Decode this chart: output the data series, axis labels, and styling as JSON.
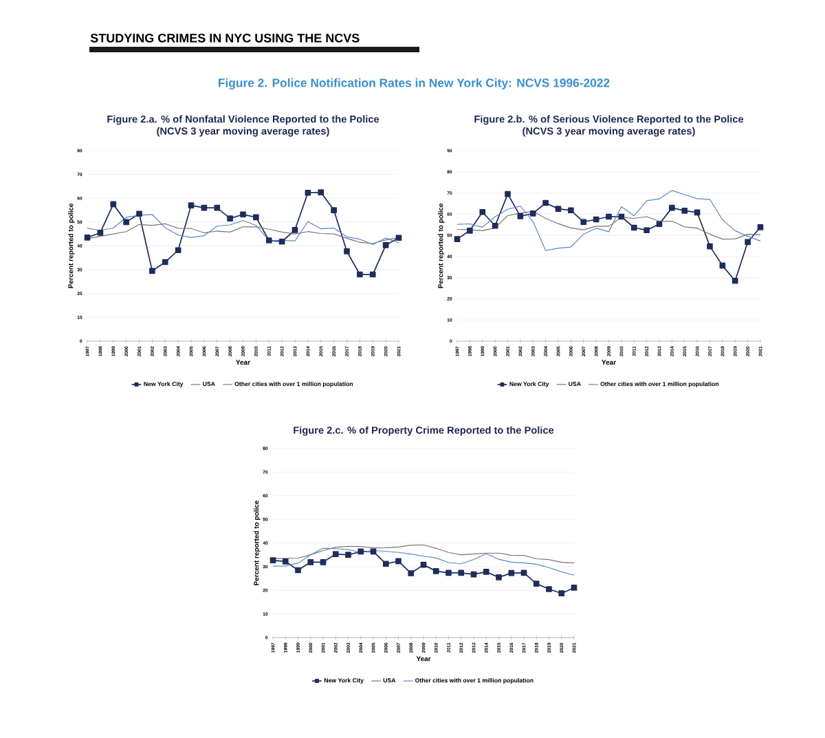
{
  "chart_data": [
    {
      "type": "other",
      "title": "STUDYING CRIMES IN NYC USING THE NCVS",
      "subtitle": "Figure 2. Police Notification Rates in New York City: NCVS 1996-2022"
    },
    {
      "type": "line",
      "title": "Figure 2.a. % of Nonfatal Violence Reported to the Police",
      "subtitle": "(NCVS 3 year moving average rates)",
      "xlabel": "Year",
      "ylabel": "Percent reported to police",
      "categories": [
        "1997",
        "1998",
        "1999",
        "2000",
        "2001",
        "2002",
        "2003",
        "2004",
        "2005",
        "2006",
        "2007",
        "2008",
        "2009",
        "2010",
        "2011",
        "2012",
        "2013",
        "2014",
        "2015",
        "2016",
        "2017",
        "2018",
        "2019",
        "2020",
        "2021"
      ],
      "ylim": [
        0,
        80
      ],
      "yticks": [
        0,
        10,
        20,
        30,
        40,
        50,
        60,
        70,
        80
      ],
      "grid": "y",
      "legend": "bottom",
      "series": [
        {
          "name": "New York City",
          "color": "#1f2d5c",
          "marker": "square",
          "values": [
            43.5,
            45.5,
            57.5,
            50,
            53.5,
            29.5,
            33.2,
            38.2,
            57,
            56,
            56,
            51.5,
            53.2,
            52,
            42.3,
            41.8,
            46.7,
            62.3,
            62.5,
            55,
            37.7,
            28,
            28,
            40.3,
            43.4
          ]
        },
        {
          "name": "USA",
          "color": "#7a7372",
          "marker": "none",
          "values": [
            43,
            44,
            45,
            46,
            49,
            48.6,
            49.3,
            47.4,
            47.3,
            45.5,
            46.2,
            45.8,
            48,
            48,
            47,
            45.8,
            45,
            46,
            45.2,
            45,
            43.2,
            41.5,
            41,
            42.5,
            43.5
          ]
        },
        {
          "name": "Other cities with over 1 million population",
          "color": "#5b87c0",
          "marker": "none",
          "values": [
            47.4,
            46.5,
            47.5,
            52,
            52.8,
            53.2,
            47.6,
            44.6,
            43.5,
            44.3,
            48.3,
            48.8,
            50.7,
            48.6,
            42.3,
            42.3,
            42.1,
            50.2,
            47.2,
            47.5,
            43.8,
            42.8,
            40.6,
            43.3,
            41.3
          ]
        }
      ]
    },
    {
      "type": "line",
      "title": "Figure 2.b. % of Serious Violence Reported to the Police",
      "subtitle": "(NCVS 3 year moving average rates)",
      "xlabel": "Year",
      "ylabel": "Percent reported to police",
      "categories": [
        "1997",
        "1998",
        "1999",
        "2000",
        "2001",
        "2002",
        "2003",
        "2004",
        "2005",
        "2006",
        "2007",
        "2008",
        "2009",
        "2010",
        "2011",
        "2012",
        "2013",
        "2014",
        "2015",
        "2016",
        "2017",
        "2018",
        "2019",
        "2020",
        "2021"
      ],
      "ylim": [
        0,
        90
      ],
      "yticks": [
        0,
        10,
        20,
        30,
        40,
        50,
        60,
        70,
        80,
        90
      ],
      "grid": "y",
      "legend": "bottom",
      "series": [
        {
          "name": "New York City",
          "color": "#1f2d5c",
          "marker": "square",
          "values": [
            48.2,
            52.2,
            61,
            54.5,
            69.5,
            59,
            60.3,
            65.3,
            62.5,
            61.8,
            56.3,
            57.5,
            58.8,
            58.8,
            53.6,
            52.4,
            55.3,
            63,
            61.6,
            60.8,
            44.8,
            35.7,
            28.5,
            46.8,
            53.8
          ]
        },
        {
          "name": "USA",
          "color": "#7a7372",
          "marker": "none",
          "values": [
            52.8,
            52.6,
            52.2,
            53.5,
            59.3,
            60.5,
            61.3,
            58,
            55.5,
            53.5,
            52.6,
            54.3,
            54.3,
            58.5,
            58,
            58.8,
            56.6,
            56.7,
            54,
            53.4,
            50.5,
            48.2,
            48.3,
            50.5,
            50.3
          ]
        },
        {
          "name": "Other cities with over 1 million population",
          "color": "#5b87c0",
          "marker": "none",
          "values": [
            55.2,
            55.4,
            53.8,
            58.8,
            62.3,
            63.8,
            56.5,
            42.8,
            43.9,
            44.5,
            50.5,
            53.3,
            51.7,
            63.5,
            59.2,
            66.3,
            67.2,
            71.2,
            69.2,
            67.3,
            67,
            57.3,
            52.2,
            49.5,
            47.3
          ]
        }
      ]
    },
    {
      "type": "line",
      "title": "Figure 2.c. % of Property Crime Reported to the Police",
      "xlabel": "Year",
      "ylabel": "Percent reported to police",
      "categories": [
        "1997",
        "1998",
        "1999",
        "2000",
        "2001",
        "2002",
        "2003",
        "2004",
        "2005",
        "2006",
        "2007",
        "2008",
        "2009",
        "2010",
        "2011",
        "2012",
        "2013",
        "2014",
        "2015",
        "2016",
        "2017",
        "2018",
        "2019",
        "2020",
        "2021"
      ],
      "ylim": [
        0,
        80
      ],
      "yticks": [
        0,
        10,
        20,
        30,
        40,
        50,
        60,
        70,
        80
      ],
      "grid": "y",
      "legend": "bottom",
      "series": [
        {
          "name": "New York City",
          "color": "#1f2d5c",
          "marker": "square",
          "values": [
            32.7,
            32.2,
            28.5,
            31.9,
            31.9,
            35.3,
            35,
            36.4,
            36.4,
            31.2,
            32.3,
            27.2,
            30.8,
            28.1,
            27.4,
            27.4,
            26.7,
            27.8,
            25.5,
            27.3,
            27.4,
            22.8,
            20.5,
            18.7,
            21.1
          ]
        },
        {
          "name": "USA",
          "color": "#7a7372",
          "marker": "none",
          "values": [
            33.5,
            33.5,
            33.6,
            35,
            36.8,
            38.2,
            38.6,
            38.5,
            37.9,
            38,
            38.3,
            39.1,
            39.2,
            37.8,
            36,
            35,
            35.4,
            35.7,
            35.7,
            34.8,
            34.7,
            33.3,
            33,
            31.8,
            31.6
          ]
        },
        {
          "name": "Other cities with over 1 million population",
          "color": "#5b87c0",
          "marker": "none",
          "values": [
            30.2,
            30.3,
            31.5,
            35,
            37.8,
            37.6,
            37.2,
            36,
            36.8,
            36.5,
            36,
            35.4,
            34.4,
            33.7,
            31.7,
            31.2,
            33,
            35.4,
            33.1,
            31.9,
            31.6,
            31,
            29.6,
            27.8,
            26.4
          ]
        }
      ]
    }
  ]
}
